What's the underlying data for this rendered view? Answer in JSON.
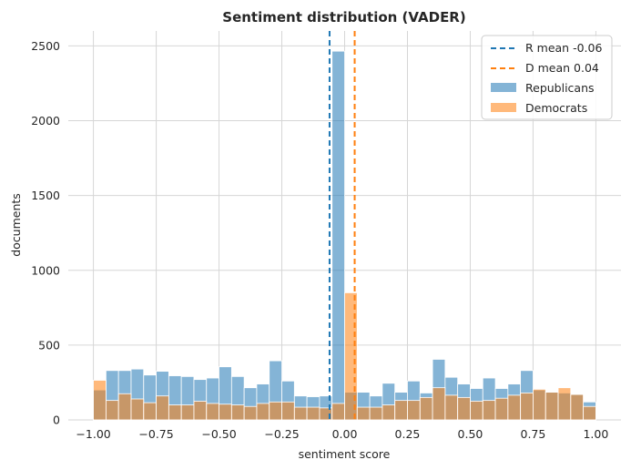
{
  "chart_data": {
    "type": "bar",
    "title": "Sentiment distribution (VADER)",
    "xlabel": "sentiment score",
    "ylabel": "documents",
    "xlim": [
      -1.1,
      1.1
    ],
    "ylim": [
      0,
      2600
    ],
    "xticks": [
      -1.0,
      -0.75,
      -0.5,
      -0.25,
      0.0,
      0.25,
      0.5,
      0.75,
      1.0
    ],
    "xtick_labels": [
      "−1.00",
      "−0.75",
      "−0.50",
      "−0.25",
      "0.00",
      "0.25",
      "0.50",
      "0.75",
      "1.00"
    ],
    "yticks": [
      0,
      500,
      1000,
      1500,
      2000,
      2500
    ],
    "ytick_labels": [
      "0",
      "500",
      "1000",
      "1500",
      "2000",
      "2500"
    ],
    "grid": true,
    "legend_position": "top-right",
    "bin_start": -1.0,
    "bin_width": 0.05,
    "series": [
      {
        "name": "Republicans",
        "color": "#1f77b4",
        "values": [
          200,
          330,
          330,
          340,
          300,
          325,
          295,
          290,
          270,
          280,
          355,
          290,
          215,
          240,
          395,
          260,
          160,
          155,
          160,
          2465,
          185,
          185,
          160,
          245,
          185,
          260,
          180,
          405,
          285,
          240,
          210,
          280,
          210,
          240,
          330,
          200,
          185,
          180,
          170,
          120
        ]
      },
      {
        "name": "Democrats",
        "color": "#ff7f0e",
        "values": [
          265,
          130,
          175,
          140,
          115,
          160,
          100,
          100,
          125,
          110,
          105,
          100,
          90,
          110,
          120,
          120,
          85,
          85,
          80,
          110,
          850,
          85,
          85,
          100,
          130,
          130,
          150,
          215,
          165,
          150,
          125,
          130,
          145,
          165,
          180,
          205,
          185,
          215,
          170,
          90
        ]
      }
    ],
    "reference_lines": [
      {
        "name": "R mean -0.06",
        "x": -0.06,
        "color": "#1f77b4"
      },
      {
        "name": "D mean 0.04",
        "x": 0.04,
        "color": "#ff7f0e"
      }
    ]
  }
}
